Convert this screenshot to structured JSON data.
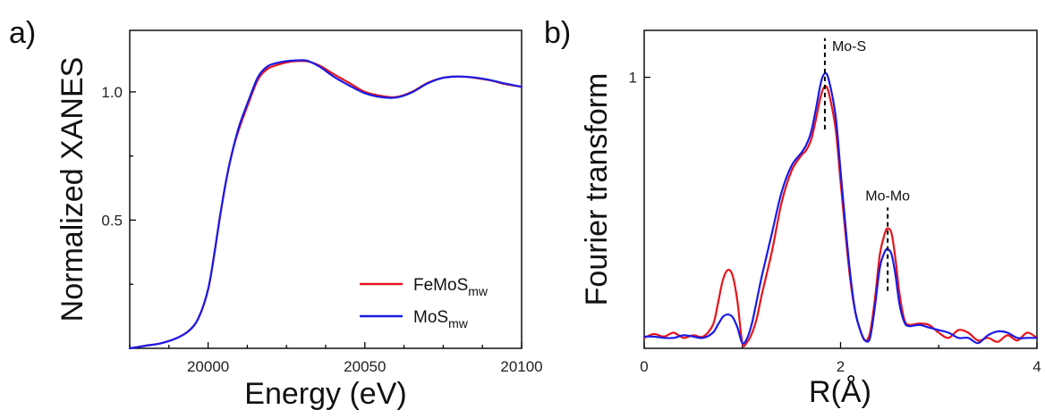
{
  "colors": {
    "red": "#e8141b",
    "blue": "#1a1ae6"
  },
  "chart_data": [
    {
      "type": "line",
      "panel_label": "a)",
      "xlabel": "Energy (eV)",
      "ylabel": "Normalized XANES",
      "xlim": [
        19975,
        20100
      ],
      "ylim": [
        0,
        1.24
      ],
      "xticks": [
        20000,
        20050,
        20100
      ],
      "yticks": [
        0.5,
        1.0
      ],
      "ytick_labels": [
        "0.5",
        "1.0"
      ],
      "legend_position": "bottom-right",
      "series": [
        {
          "name_base": "FeMoS",
          "name_sub": "mw",
          "color": "#e8141b",
          "x": [
            19975,
            19980,
            19985,
            19990,
            19994,
            19997,
            20000,
            20002,
            20004,
            20006,
            20008,
            20010,
            20013,
            20016,
            20019,
            20022,
            20025,
            20028,
            20031,
            20033,
            20036,
            20040,
            20045,
            20050,
            20055,
            20060,
            20065,
            20070,
            20075,
            20080,
            20085,
            20090,
            20095,
            20100
          ],
          "y": [
            0.0,
            0.01,
            0.02,
            0.04,
            0.07,
            0.12,
            0.23,
            0.37,
            0.53,
            0.67,
            0.78,
            0.86,
            0.96,
            1.05,
            1.09,
            1.105,
            1.115,
            1.12,
            1.12,
            1.115,
            1.1,
            1.07,
            1.035,
            1.0,
            0.985,
            0.98,
            1.0,
            1.035,
            1.055,
            1.06,
            1.055,
            1.045,
            1.03,
            1.02
          ]
        },
        {
          "name_base": "MoS",
          "name_sub": "mw",
          "color": "#1a1ae6",
          "x": [
            19975,
            19980,
            19985,
            19990,
            19994,
            19997,
            20000,
            20002,
            20004,
            20006,
            20008,
            20010,
            20013,
            20016,
            20019,
            20022,
            20025,
            20028,
            20031,
            20033,
            20036,
            20040,
            20045,
            20050,
            20055,
            20060,
            20065,
            20070,
            20075,
            20080,
            20085,
            20090,
            20095,
            20100
          ],
          "y": [
            0.0,
            0.01,
            0.02,
            0.04,
            0.07,
            0.12,
            0.23,
            0.37,
            0.53,
            0.67,
            0.78,
            0.87,
            0.97,
            1.06,
            1.1,
            1.113,
            1.12,
            1.123,
            1.123,
            1.115,
            1.095,
            1.06,
            1.025,
            0.995,
            0.98,
            0.978,
            0.998,
            1.033,
            1.055,
            1.06,
            1.056,
            1.046,
            1.032,
            1.02
          ]
        }
      ]
    },
    {
      "type": "line",
      "panel_label": "b)",
      "xlabel": "R(Å)",
      "ylabel": "Fourier transform",
      "xlim": [
        0,
        4
      ],
      "ylim": [
        -0.04,
        1.18
      ],
      "xticks": [
        0,
        2,
        4
      ],
      "yticks": [
        1
      ],
      "ytick_labels": [
        "1"
      ],
      "annotations": [
        {
          "text": "Mo-S",
          "x": 1.84,
          "line_y": [
            0.8,
            1.15
          ]
        },
        {
          "text": "Mo-Mo",
          "x": 2.48,
          "line_y": [
            0.18,
            0.5
          ]
        }
      ],
      "series": [
        {
          "name_base": "FeMoS",
          "name_sub": "mw",
          "color": "#e8141b",
          "x": [
            0,
            0.1,
            0.2,
            0.3,
            0.4,
            0.5,
            0.6,
            0.7,
            0.75,
            0.8,
            0.85,
            0.9,
            0.95,
            1.0,
            1.05,
            1.1,
            1.15,
            1.2,
            1.3,
            1.4,
            1.5,
            1.6,
            1.65,
            1.7,
            1.75,
            1.8,
            1.84,
            1.88,
            1.95,
            2.0,
            2.05,
            2.1,
            2.15,
            2.2,
            2.25,
            2.3,
            2.35,
            2.4,
            2.45,
            2.48,
            2.52,
            2.56,
            2.6,
            2.65,
            2.7,
            2.8,
            2.9,
            3.0,
            3.1,
            3.2,
            3.3,
            3.4,
            3.5,
            3.6,
            3.7,
            3.8,
            3.9,
            4.0
          ],
          "y": [
            0.0,
            0.015,
            0.005,
            0.02,
            0.0,
            0.01,
            0.005,
            0.05,
            0.13,
            0.22,
            0.26,
            0.24,
            0.14,
            -0.02,
            -0.015,
            0.02,
            0.08,
            0.17,
            0.33,
            0.52,
            0.64,
            0.7,
            0.72,
            0.76,
            0.84,
            0.93,
            0.965,
            0.94,
            0.8,
            0.6,
            0.4,
            0.22,
            0.1,
            0.03,
            -0.01,
            0.02,
            0.15,
            0.32,
            0.4,
            0.42,
            0.4,
            0.3,
            0.17,
            0.07,
            0.05,
            0.055,
            0.05,
            0.02,
            0.0,
            0.03,
            0.02,
            -0.01,
            0.0,
            -0.015,
            0.01,
            -0.01,
            0.02,
            0.0
          ]
        },
        {
          "name_base": "MoS",
          "name_sub": "mw",
          "color": "#1a1ae6",
          "x": [
            0,
            0.1,
            0.2,
            0.3,
            0.4,
            0.5,
            0.6,
            0.7,
            0.75,
            0.8,
            0.85,
            0.9,
            0.95,
            1.0,
            1.05,
            1.1,
            1.15,
            1.2,
            1.3,
            1.4,
            1.5,
            1.6,
            1.65,
            1.7,
            1.75,
            1.8,
            1.84,
            1.88,
            1.95,
            2.0,
            2.05,
            2.1,
            2.15,
            2.2,
            2.25,
            2.3,
            2.35,
            2.4,
            2.45,
            2.48,
            2.52,
            2.56,
            2.6,
            2.65,
            2.7,
            2.8,
            2.9,
            3.0,
            3.1,
            3.2,
            3.3,
            3.4,
            3.5,
            3.6,
            3.7,
            3.8,
            3.9,
            4.0
          ],
          "y": [
            0.005,
            0.005,
            0.0,
            0.0,
            0.01,
            0.005,
            0.0,
            0.02,
            0.05,
            0.08,
            0.09,
            0.08,
            0.04,
            -0.02,
            0.0,
            0.06,
            0.15,
            0.24,
            0.4,
            0.56,
            0.66,
            0.71,
            0.74,
            0.79,
            0.88,
            0.98,
            1.015,
            0.99,
            0.85,
            0.64,
            0.43,
            0.24,
            0.1,
            0.03,
            -0.01,
            0.0,
            0.12,
            0.27,
            0.33,
            0.34,
            0.32,
            0.24,
            0.13,
            0.06,
            0.045,
            0.05,
            0.04,
            0.03,
            0.02,
            0.0,
            0.0,
            -0.02,
            0.01,
            0.025,
            0.02,
            0.0,
            0.0,
            0.0
          ]
        }
      ]
    }
  ]
}
